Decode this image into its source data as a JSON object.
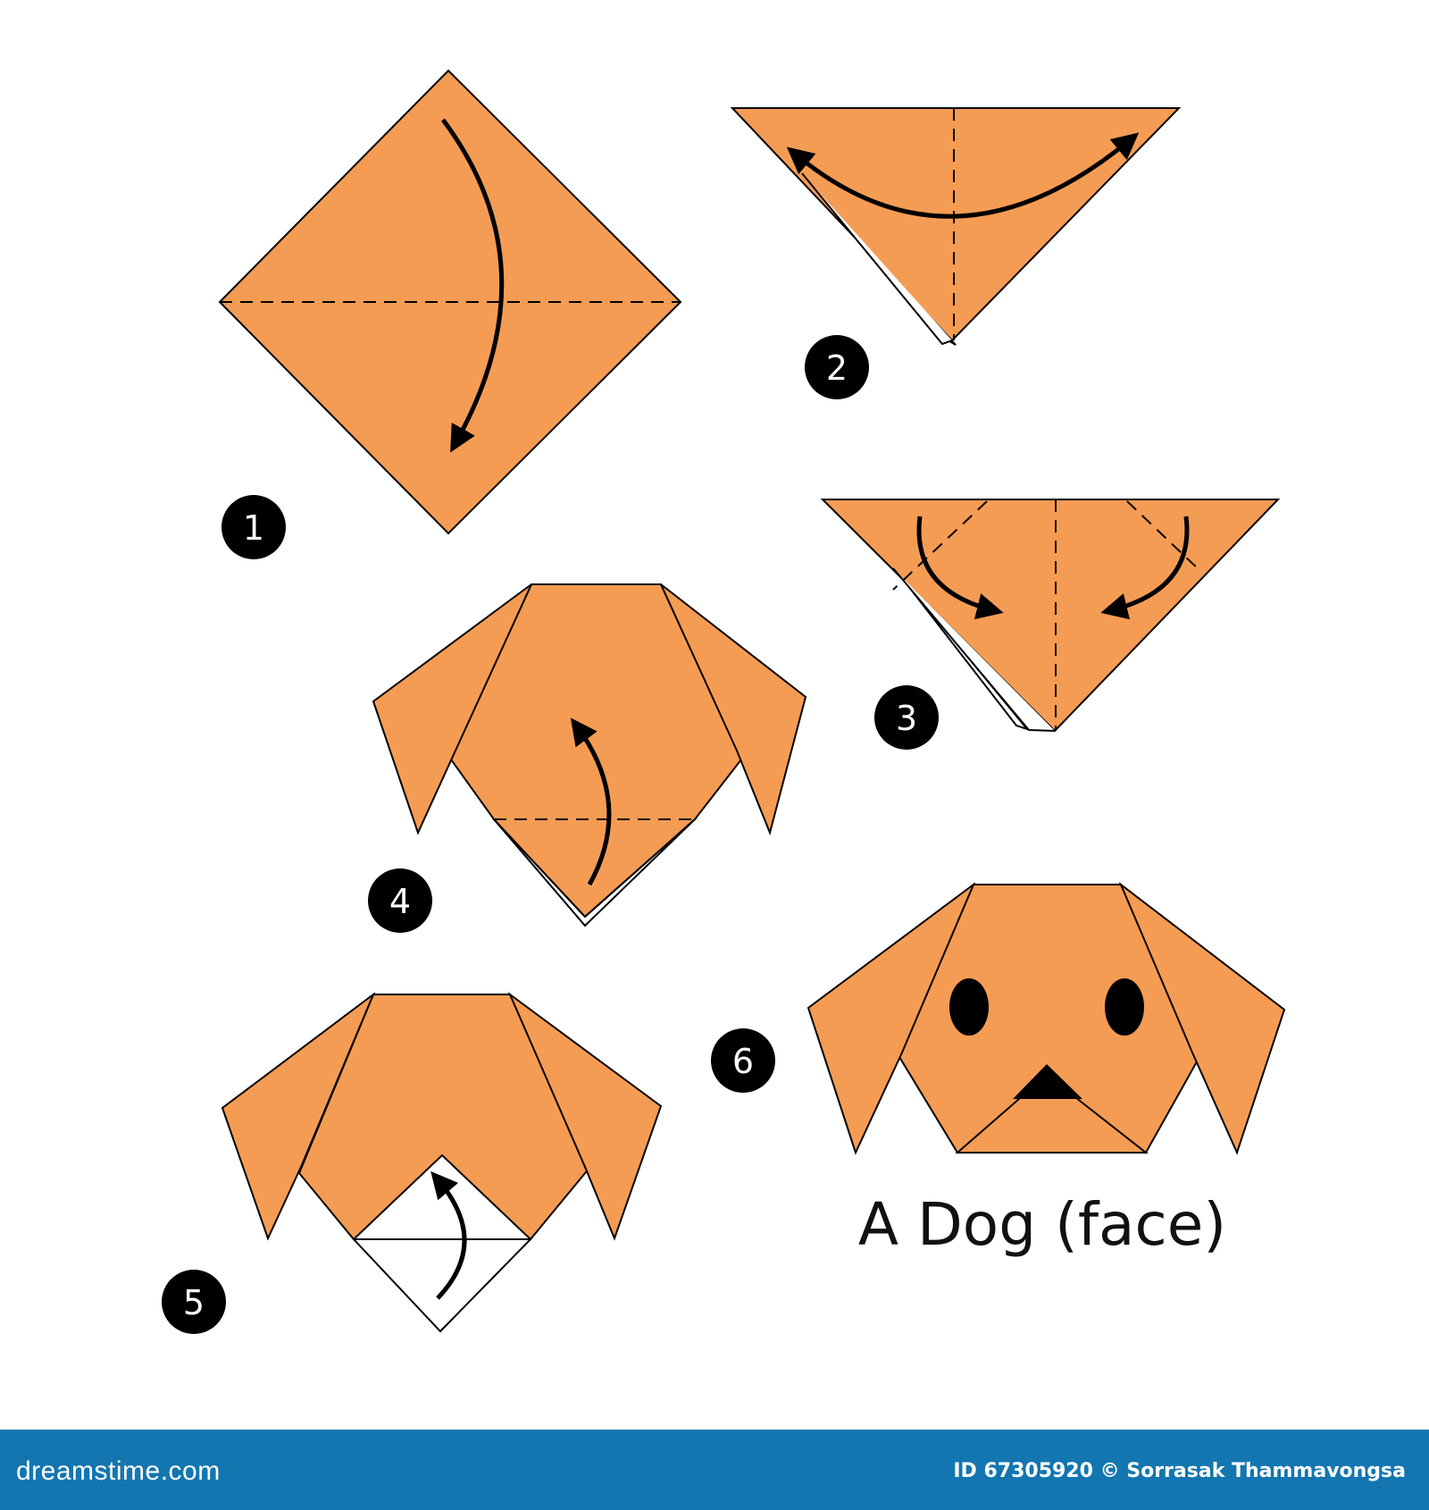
{
  "title": "A Dog (face)",
  "steps": [
    {
      "number": "1"
    },
    {
      "number": "2"
    },
    {
      "number": "3"
    },
    {
      "number": "4"
    },
    {
      "number": "5"
    },
    {
      "number": "6"
    }
  ],
  "footer": {
    "brand": "dreamstime.com",
    "credit": "ID 67305920 © Sorrasak Thammavongsa"
  },
  "colors": {
    "paper": "#f59c54",
    "back": "#ffffff",
    "stroke": "#000000",
    "footer": "#1376b0"
  }
}
